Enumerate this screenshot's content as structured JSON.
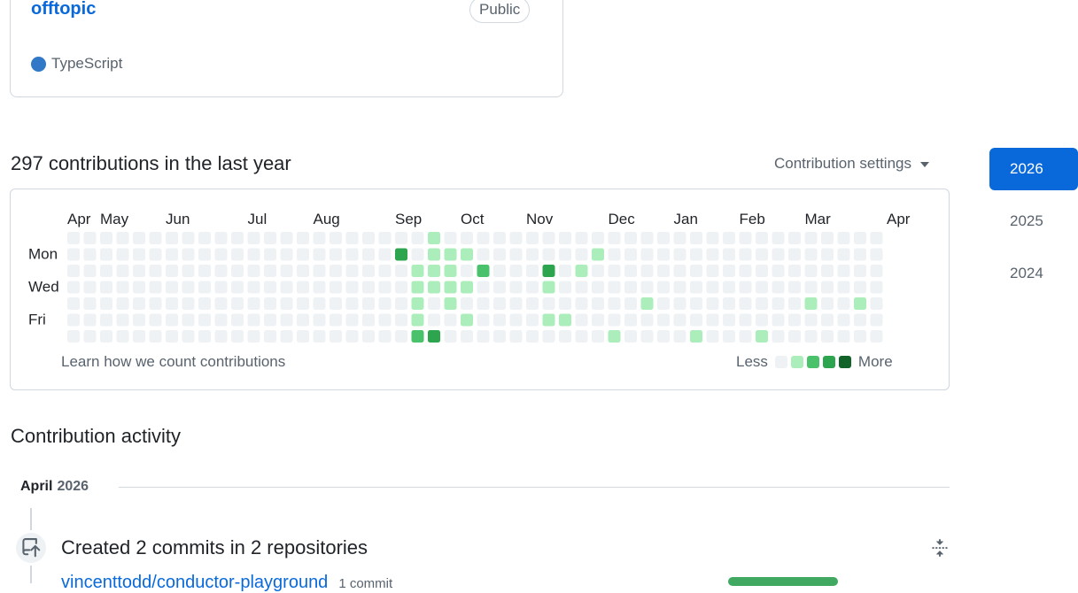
{
  "repo_card": {
    "name": "offtopic",
    "visibility": "Public",
    "language": "TypeScript",
    "language_color": "#3178c6"
  },
  "contributions": {
    "heading": "297 contributions in the last year",
    "settings_label": "Contribution settings",
    "months": [
      "Apr",
      "May",
      "Jun",
      "Jul",
      "Aug",
      "Sep",
      "Oct",
      "Nov",
      "Dec",
      "Jan",
      "Feb",
      "Mar",
      "Apr"
    ],
    "weekdays": [
      "Mon",
      "Wed",
      "Fri"
    ],
    "learn_link": "Learn how we count contributions",
    "legend_less": "Less",
    "legend_more": "More",
    "level_colors": [
      "#eff2f5",
      "#aceebb",
      "#4ac26b",
      "#2da44e",
      "#116329"
    ],
    "weeks": [
      "0000000",
      "0000000",
      "0000000",
      "0000000",
      "0000000",
      "0000000",
      "0000000",
      "0000000",
      "0000000",
      "0000000",
      "0000000",
      "0000000",
      "0000000",
      "0000000",
      "0000000",
      "0000000",
      "0000000",
      "0000000",
      "0000000",
      "0000000",
      "0300000",
      "0011112",
      "1111003",
      "0111100",
      "0101010",
      "0020000",
      "0000000",
      "0000000",
      "0000000",
      "0031010",
      "0000010",
      "0010000",
      "0100000",
      "0000001",
      "0000000",
      "0000100",
      "0000000",
      "0000000",
      "0000001",
      "0000000",
      "0000000",
      "0000000",
      "0000001",
      "0000000",
      "0000000",
      "0000100",
      "0000000",
      "0000000",
      "0000100",
      "0000000"
    ]
  },
  "years": [
    "2026",
    "2025",
    "2024"
  ],
  "active_year": "2026",
  "activity": {
    "heading": "Contribution activity",
    "month": "April",
    "year": "2026",
    "event_title": "Created 2 commits in 2 repositories",
    "repo": "vincenttodd/conductor-playground",
    "repo_count": "1 commit"
  }
}
